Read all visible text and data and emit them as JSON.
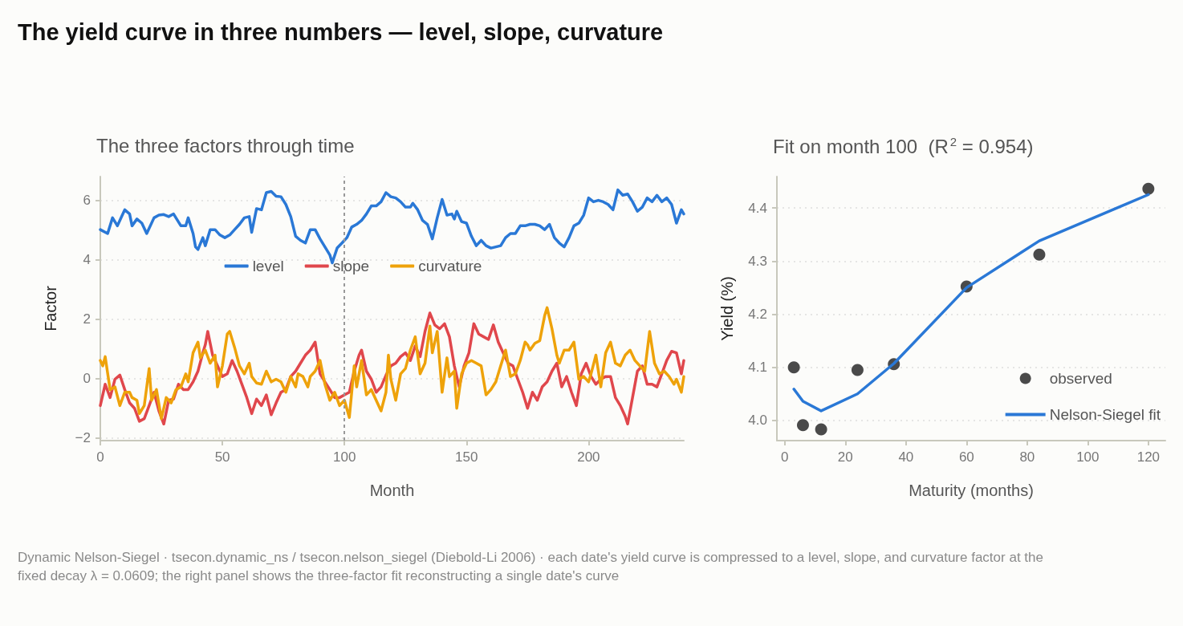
{
  "chart_data": [
    {
      "type": "line",
      "title": "The yield curve in three numbers — level, slope, curvature",
      "subtitle": "The three factors through time",
      "xlabel": "Month",
      "ylabel": "Factor",
      "annotations": [
        "Dynamic Nelson-Siegel · tsecon.dynamic_ns / tsecon.nelson_siegel (Diebold-Li 2006) · each date's yield curve is compressed to a level, slope, and curvature factor at the fixed decay λ = 0.0609; the right panel shows the three-factor fit reconstructing a single date's curve"
      ],
      "xlim": [
        0,
        239
      ],
      "xticks": [
        0,
        50,
        100,
        150,
        200
      ],
      "ylim": [
        -2.1,
        6.8
      ],
      "yticks": [
        {
          "value": -2,
          "label": "−2"
        },
        0,
        2,
        4,
        6
      ],
      "grid": "y",
      "legend": "top",
      "marker": "none",
      "line_style": "solid",
      "ref_lines": [
        {
          "axis": "x",
          "value": 100,
          "color": "#999999",
          "line_style": "dashed"
        }
      ],
      "series": [
        {
          "name": "level",
          "color": "#2a78d6",
          "x": [
            0,
            3,
            5,
            7,
            9,
            10,
            12,
            13,
            15,
            17,
            19,
            22,
            24,
            26,
            28,
            30,
            33,
            35,
            36,
            38,
            39,
            40,
            42,
            43,
            45,
            47,
            49,
            51,
            53,
            55,
            57,
            59,
            61,
            62,
            64,
            66,
            68,
            70,
            72,
            74,
            76,
            78,
            80,
            82,
            84,
            86,
            88,
            90,
            92,
            94,
            95,
            97,
            99,
            101,
            103,
            105,
            107,
            109,
            111,
            113,
            115,
            117,
            119,
            121,
            123,
            125,
            127,
            128,
            130,
            132,
            134,
            136,
            138,
            140,
            142,
            144,
            145,
            146,
            148,
            150,
            152,
            154,
            156,
            158,
            160,
            162,
            164,
            166,
            168,
            170,
            172,
            174,
            176,
            178,
            180,
            182,
            184,
            186,
            188,
            190,
            192,
            194,
            196,
            198,
            200,
            202,
            204,
            206,
            208,
            210,
            212,
            214,
            216,
            218,
            220,
            222,
            224,
            226,
            228,
            230,
            232,
            234,
            236,
            238,
            239
          ],
          "values": [
            5.01,
            4.88,
            5.41,
            5.14,
            5.5,
            5.68,
            5.54,
            5.14,
            5.37,
            5.23,
            4.88,
            5.41,
            5.5,
            5.52,
            5.45,
            5.54,
            5.14,
            5.14,
            5.41,
            4.88,
            4.43,
            4.34,
            4.74,
            4.47,
            5.01,
            5.01,
            4.83,
            4.74,
            4.83,
            5.01,
            5.19,
            5.41,
            5.45,
            4.92,
            5.72,
            5.68,
            6.26,
            6.3,
            6.14,
            6.12,
            5.86,
            5.45,
            4.79,
            4.65,
            4.56,
            5.01,
            5.01,
            4.7,
            4.43,
            4.16,
            3.89,
            4.39,
            4.56,
            4.74,
            5.1,
            5.19,
            5.32,
            5.54,
            5.81,
            5.81,
            5.95,
            6.26,
            6.12,
            6.08,
            5.95,
            5.77,
            5.77,
            5.9,
            5.68,
            5.32,
            5.19,
            4.7,
            5.41,
            6.03,
            5.5,
            5.54,
            5.37,
            5.63,
            5.28,
            5.23,
            4.79,
            4.47,
            4.65,
            4.47,
            4.39,
            4.43,
            4.47,
            4.74,
            4.88,
            4.88,
            5.14,
            5.14,
            5.19,
            5.19,
            5.14,
            5.01,
            5.19,
            4.74,
            4.56,
            4.43,
            4.74,
            5.14,
            5.23,
            5.5,
            6.08,
            5.95,
            6.0,
            5.95,
            5.86,
            5.68,
            6.35,
            6.17,
            6.21,
            5.95,
            5.63,
            5.77,
            6.08,
            5.95,
            6.17,
            5.95,
            6.08,
            5.86,
            5.23,
            5.68,
            5.54
          ]
        },
        {
          "name": "slope",
          "color": "#e0474c",
          "x": [
            0,
            2,
            4,
            6,
            8,
            10,
            12,
            14,
            16,
            18,
            20,
            22,
            24,
            26,
            28,
            30,
            32,
            34,
            36,
            38,
            40,
            42,
            43,
            44,
            46,
            48,
            50,
            52,
            54,
            56,
            58,
            60,
            62,
            64,
            66,
            68,
            70,
            72,
            74,
            76,
            78,
            80,
            82,
            84,
            86,
            88,
            90,
            92,
            94,
            96,
            98,
            100,
            102,
            104,
            106,
            107,
            109,
            111,
            113,
            115,
            117,
            119,
            121,
            123,
            125,
            127,
            129,
            131,
            133,
            135,
            137,
            139,
            141,
            143,
            145,
            147,
            149,
            151,
            153,
            155,
            157,
            159,
            161,
            163,
            165,
            167,
            169,
            171,
            173,
            175,
            177,
            179,
            181,
            183,
            185,
            187,
            189,
            191,
            193,
            195,
            197,
            199,
            201,
            203,
            205,
            207,
            209,
            211,
            213,
            215,
            216,
            218,
            220,
            222,
            224,
            226,
            228,
            230,
            232,
            234,
            236,
            238,
            239
          ],
          "values": [
            -0.92,
            -0.2,
            -0.65,
            -0.03,
            0.11,
            -0.38,
            -0.83,
            -1.01,
            -1.45,
            -1.36,
            -0.92,
            -0.47,
            -1.1,
            -1.54,
            -0.74,
            -0.7,
            -0.2,
            -0.38,
            -0.38,
            -0.12,
            0.24,
            0.86,
            1.13,
            1.58,
            0.78,
            0.42,
            0.06,
            0.15,
            0.6,
            0.24,
            -0.2,
            -0.65,
            -1.19,
            -0.7,
            -0.92,
            -0.56,
            -1.23,
            -0.83,
            -0.47,
            -0.38,
            0.06,
            0.24,
            0.51,
            0.78,
            0.95,
            1.22,
            0.15,
            -0.12,
            -0.38,
            -0.65,
            -0.65,
            -0.56,
            -0.47,
            0.24,
            0.78,
            0.95,
            0.24,
            -0.03,
            -0.47,
            -0.29,
            0.1,
            0.42,
            0.51,
            0.73,
            0.86,
            0.6,
            1.09,
            0.73,
            1.58,
            2.2,
            1.8,
            1.67,
            1.84,
            1.4,
            0.42,
            -0.29,
            0.42,
            0.86,
            1.84,
            1.49,
            1.4,
            1.31,
            1.8,
            1.22,
            0.86,
            0.51,
            0.42,
            -0.03,
            -0.47,
            -1.01,
            -0.47,
            -0.74,
            -0.29,
            -0.12,
            0.24,
            0.51,
            -0.29,
            0.06,
            -0.47,
            -0.92,
            0.15,
            0.51,
            0.06,
            -0.2,
            -0.03,
            0.06,
            0.06,
            -0.65,
            -0.92,
            -1.28,
            -1.54,
            -0.65,
            0.24,
            0.42,
            -0.2,
            -0.2,
            -0.29,
            0.15,
            0.6,
            0.91,
            0.86,
            0.15,
            0.6
          ]
        },
        {
          "name": "curvature",
          "color": "#eea20a",
          "x": [
            0,
            1,
            2,
            4,
            6,
            8,
            10,
            12,
            13,
            15,
            16,
            18,
            20,
            21,
            23,
            25,
            27,
            29,
            31,
            33,
            35,
            36,
            38,
            40,
            41,
            43,
            45,
            47,
            48,
            50,
            52,
            53,
            55,
            57,
            59,
            61,
            62,
            64,
            66,
            68,
            70,
            72,
            74,
            76,
            78,
            80,
            81,
            83,
            85,
            86,
            88,
            90,
            92,
            94,
            96,
            98,
            100,
            102,
            104,
            105,
            107,
            109,
            111,
            113,
            115,
            117,
            118,
            119,
            121,
            123,
            125,
            127,
            129,
            131,
            133,
            135,
            136,
            138,
            140,
            142,
            143,
            145,
            146,
            148,
            150,
            152,
            154,
            156,
            158,
            160,
            162,
            164,
            166,
            168,
            170,
            172,
            174,
            175,
            176,
            178,
            180,
            182,
            183,
            185,
            187,
            188,
            190,
            192,
            194,
            196,
            198,
            200,
            201,
            203,
            205,
            207,
            209,
            211,
            213,
            215,
            217,
            219,
            221,
            223,
            225,
            227,
            229,
            231,
            233,
            235,
            236,
            238,
            239
          ],
          "values": [
            0.6,
            0.42,
            0.73,
            -0.38,
            -0.29,
            -0.92,
            -0.47,
            -0.47,
            -0.65,
            -0.74,
            -1.19,
            -0.92,
            0.33,
            -0.74,
            -0.38,
            -1.36,
            -0.65,
            -0.83,
            -0.38,
            -0.29,
            0.15,
            -0.12,
            0.86,
            1.22,
            0.69,
            0.95,
            0.51,
            0.78,
            -0.29,
            0.42,
            1.49,
            1.58,
            1.04,
            0.42,
            0.15,
            0.51,
            0.06,
            -0.16,
            -0.2,
            0.24,
            -0.12,
            -0.03,
            -0.12,
            -0.47,
            0.06,
            -0.29,
            0.15,
            0.06,
            -0.29,
            0.06,
            0.24,
            0.6,
            -0.2,
            -0.74,
            -0.47,
            -0.92,
            -0.74,
            -1.32,
            0.42,
            -0.29,
            0.6,
            -0.56,
            -0.38,
            -0.74,
            -1.1,
            -0.47,
            0.78,
            -0.03,
            -0.74,
            0.15,
            0.33,
            0.95,
            1.4,
            0.15,
            0.51,
            1.76,
            0.86,
            1.58,
            -0.47,
            0.69,
            0.06,
            0.24,
            -1.01,
            0.15,
            0.51,
            0.6,
            0.51,
            0.42,
            -0.56,
            -0.38,
            -0.12,
            0.42,
            0.95,
            0.06,
            0.15,
            0.6,
            1.22,
            1.13,
            0.95,
            1.18,
            1.27,
            2.11,
            2.38,
            1.67,
            0.78,
            0.51,
            0.95,
            0.95,
            1.22,
            -0.03,
            0.06,
            -0.12,
            0.15,
            0.78,
            -0.29,
            0.86,
            1.22,
            0.51,
            0.42,
            0.78,
            0.95,
            0.6,
            0.42,
            0.24,
            1.58,
            0.51,
            0.15,
            0.24,
            0.06,
            -0.2,
            -0.03,
            -0.47,
            0.06
          ]
        }
      ]
    },
    {
      "type": "scatter",
      "title": "Fit on month 100  (R$^{2}$ = 0.954)",
      "xlabel": "Maturity (months)",
      "ylabel": "Yield (%)",
      "xlim": [
        -2.6,
        125.6
      ],
      "xticks": [
        0,
        20,
        40,
        60,
        80,
        100,
        120
      ],
      "ylim": [
        3.962,
        4.459
      ],
      "yticks": [
        {
          "value": 4,
          "label": "4.0"
        },
        4.1,
        4.2,
        4.3,
        4.4
      ],
      "grid": "y",
      "legend": "bottom right",
      "series": [
        {
          "name": "observed",
          "marker": "circle",
          "color": "#4a4a4a",
          "x": [
            3,
            6,
            12,
            24,
            36,
            60,
            84,
            120
          ],
          "values": [
            4.1,
            3.991,
            3.983,
            4.095,
            4.106,
            4.252,
            4.312,
            4.436
          ]
        },
        {
          "name": "Nelson-Siegel fit",
          "type": "line",
          "marker": "none",
          "line_style": "solid",
          "color": "#2a78d6",
          "x": [
            3,
            6,
            12,
            24,
            36,
            60,
            84,
            120
          ],
          "values": [
            4.059,
            4.036,
            4.018,
            4.05,
            4.107,
            4.25,
            4.338,
            4.425
          ]
        }
      ]
    }
  ]
}
